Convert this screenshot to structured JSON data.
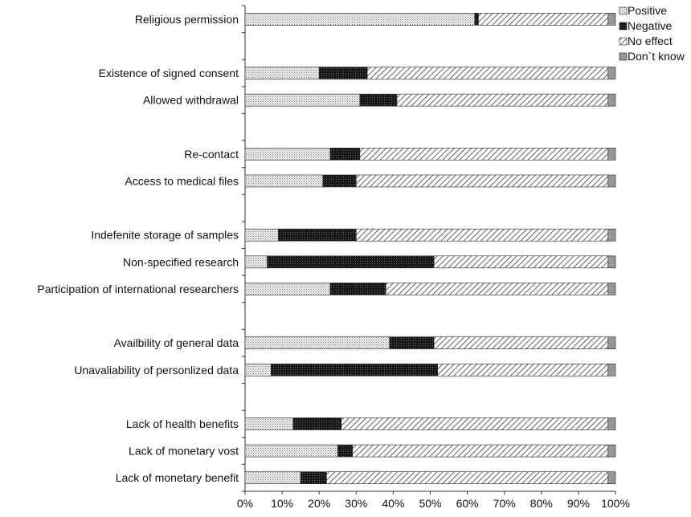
{
  "chart_data": {
    "type": "bar",
    "orientation": "horizontal",
    "stacked": true,
    "percent": true,
    "title": "",
    "xlabel": "",
    "ylabel": "",
    "xlim": [
      0,
      100
    ],
    "x_ticks": [
      "0%",
      "10%",
      "20%",
      "30%",
      "40%",
      "50%",
      "60%",
      "70%",
      "80%",
      "90%",
      "100%"
    ],
    "grid": false,
    "legend_position": "top-right",
    "categories": [
      "Religious permission",
      "Existence of signed consent",
      "Allowed withdrawal",
      "Re-contact",
      "Access to medical files",
      "Indefenite storage of samples",
      "Non-specified research",
      "Participation of international researchers",
      "Availbility of general data",
      "Unavaliability of personlized data",
      "Lack of health benefits",
      "Lack of monetary vost",
      "Lack of monetary benefit"
    ],
    "category_slots": [
      0,
      2,
      3,
      5,
      6,
      8,
      9,
      10,
      12,
      13,
      15,
      16,
      17
    ],
    "slot_count": 18,
    "series": [
      {
        "name": "Positive",
        "pattern": "dots",
        "color": "#d9d9d9",
        "values": [
          62,
          20,
          31,
          23,
          21,
          9,
          6,
          23,
          39,
          7,
          13,
          25,
          15
        ]
      },
      {
        "name": "Negative",
        "pattern": "dark-dots",
        "color": "#1a1a1a",
        "values": [
          1,
          13,
          10,
          8,
          9,
          21,
          45,
          15,
          12,
          45,
          13,
          4,
          7
        ]
      },
      {
        "name": "No effect",
        "pattern": "hatch",
        "color": "#ffffff",
        "values": [
          35,
          65,
          57,
          67,
          68,
          68,
          47,
          60,
          47,
          46,
          72,
          69,
          76
        ]
      },
      {
        "name": "Don`t know",
        "pattern": "gray",
        "color": "#9a9a9a",
        "values": [
          2,
          2,
          2,
          2,
          2,
          2,
          2,
          2,
          2,
          2,
          2,
          2,
          2
        ]
      }
    ]
  }
}
